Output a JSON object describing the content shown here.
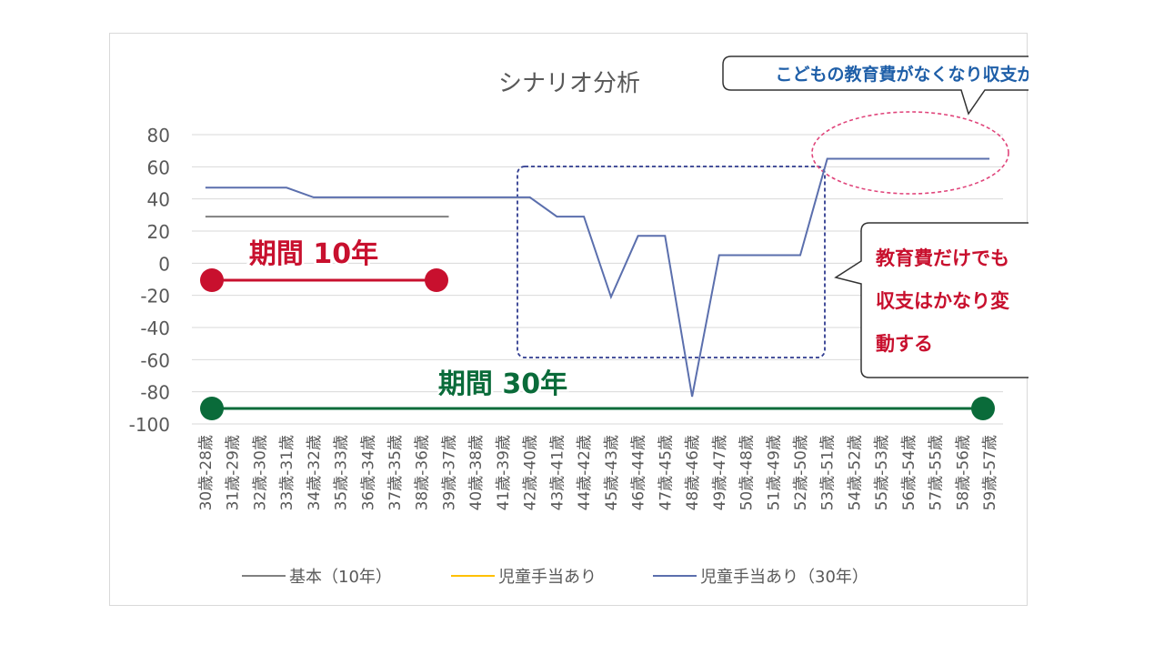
{
  "chart_data": {
    "type": "line",
    "title": "シナリオ分析",
    "ylim": [
      -100,
      80
    ],
    "yticks": [
      80,
      60,
      40,
      20,
      0,
      -20,
      -40,
      -60,
      -80,
      -100
    ],
    "grid": true,
    "legend_position": "bottom",
    "categories": [
      "30歳-28歳",
      "31歳-29歳",
      "32歳-30歳",
      "33歳-31歳",
      "34歳-32歳",
      "35歳-33歳",
      "36歳-34歳",
      "37歳-35歳",
      "38歳-36歳",
      "39歳-37歳",
      "40歳-38歳",
      "41歳-39歳",
      "42歳-40歳",
      "43歳-41歳",
      "44歳-42歳",
      "45歳-43歳",
      "46歳-44歳",
      "47歳-45歳",
      "48歳-46歳",
      "49歳-47歳",
      "50歳-48歳",
      "51歳-49歳",
      "52歳-50歳",
      "53歳-51歳",
      "54歳-52歳",
      "55歳-53歳",
      "56歳-54歳",
      "57歳-55歳",
      "58歳-56歳",
      "59歳-57歳"
    ],
    "series": [
      {
        "name": "基本（10年）",
        "color": "#808080",
        "values": [
          29,
          29,
          29,
          29,
          29,
          29,
          29,
          29,
          29,
          29,
          null,
          null,
          null,
          null,
          null,
          null,
          null,
          null,
          null,
          null,
          null,
          null,
          null,
          null,
          null,
          null,
          null,
          null,
          null,
          null
        ]
      },
      {
        "name": "児童手当あり",
        "color": "#ffc000",
        "values": [
          null,
          null,
          null,
          null,
          null,
          null,
          null,
          null,
          null,
          null,
          null,
          null,
          null,
          null,
          null,
          null,
          null,
          null,
          null,
          null,
          null,
          null,
          null,
          null,
          null,
          null,
          null,
          null,
          null,
          null
        ]
      },
      {
        "name": "児童手当あり（30年）",
        "color": "#5b6fad",
        "values": [
          47,
          47,
          47,
          47,
          41,
          41,
          41,
          41,
          41,
          41,
          41,
          41,
          41,
          29,
          29,
          -21,
          17,
          17,
          -83,
          5,
          5,
          5,
          5,
          65,
          65,
          65,
          65,
          65,
          65,
          65
        ]
      }
    ]
  },
  "annotations": {
    "period10": {
      "label": "期間 10年",
      "color": "#c8102e"
    },
    "period30": {
      "label": "期間 30年",
      "color": "#0a6b3a"
    },
    "callout_top": {
      "text": "こどもの教育費がなくなり収支が改善",
      "color": "#1f5fa8"
    },
    "callout_right": {
      "lines": [
        "教育費だけでも",
        "収支はかなり変",
        "動する"
      ],
      "color": "#c8102e"
    }
  }
}
